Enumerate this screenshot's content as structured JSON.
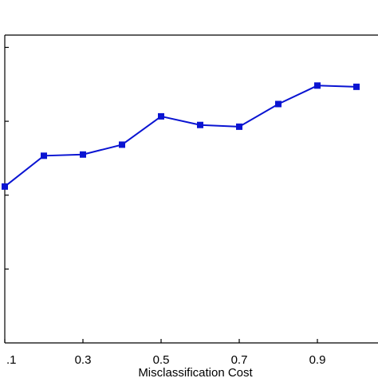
{
  "chart_data": {
    "type": "line",
    "x": [
      0.1,
      0.2,
      0.3,
      0.4,
      0.5,
      0.6,
      0.7,
      0.8,
      0.9,
      1.0
    ],
    "series": [
      {
        "values": [
          0.635,
          0.76,
          0.765,
          0.805,
          0.92,
          0.885,
          0.878,
          0.97,
          1.045,
          1.04
        ]
      }
    ],
    "x_tick_labels": [
      ".1",
      "0.3",
      "0.5",
      "0.7",
      "0.9"
    ],
    "xlabel": "Misclassification Cost",
    "ylabel": "",
    "title": "",
    "xlim": [
      0.1,
      1.0
    ],
    "ylim": [
      0,
      1.25
    ],
    "grid": false,
    "line_color": "#0a14d2",
    "marker": "square"
  }
}
